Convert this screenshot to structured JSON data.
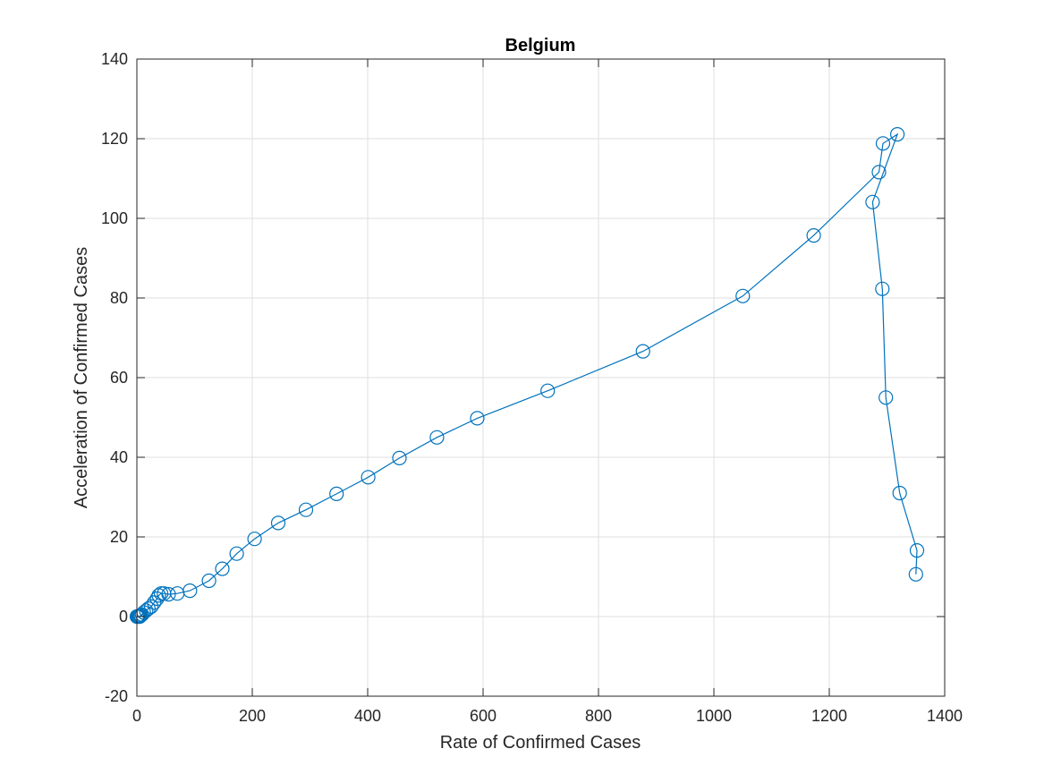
{
  "chart_data": {
    "type": "line",
    "title": "Belgium",
    "xlabel": "Rate of Confirmed Cases",
    "ylabel": "Acceleration of Confirmed Cases",
    "xlim": [
      0,
      1400
    ],
    "ylim": [
      -20,
      140
    ],
    "xticks": [
      0,
      200,
      400,
      600,
      800,
      1000,
      1200,
      1400
    ],
    "yticks": [
      -20,
      0,
      20,
      40,
      60,
      80,
      100,
      120,
      140
    ],
    "grid": true,
    "marker": "circle",
    "colors": {
      "series": "#0072BD",
      "grid": "#dfdfdf",
      "axis": "#262626"
    },
    "series": [
      {
        "x": [
          0,
          1,
          2,
          3,
          4,
          5,
          6,
          7,
          9,
          12,
          16,
          20,
          25,
          30,
          35,
          38,
          42,
          47,
          55,
          70,
          92,
          125,
          148,
          173,
          204,
          245,
          293,
          346,
          401,
          455,
          520,
          590,
          712,
          877,
          1050,
          1173,
          1286,
          1293,
          1318,
          1275,
          1292,
          1298,
          1322,
          1352,
          1350
        ],
        "y": [
          0,
          0,
          0,
          0,
          0,
          0,
          0.2,
          0.3,
          0.5,
          1,
          1.5,
          2,
          2.5,
          3.5,
          4.5,
          5.3,
          5.8,
          5.8,
          5.6,
          5.8,
          6.5,
          9,
          12,
          15.8,
          19.5,
          23.5,
          26.8,
          30.8,
          35,
          39.8,
          45,
          49.8,
          56.7,
          66.6,
          80.5,
          95.7,
          111.6,
          118.8,
          121.1,
          104.1,
          82.3,
          55,
          31,
          16.6,
          10.6
        ]
      }
    ]
  }
}
